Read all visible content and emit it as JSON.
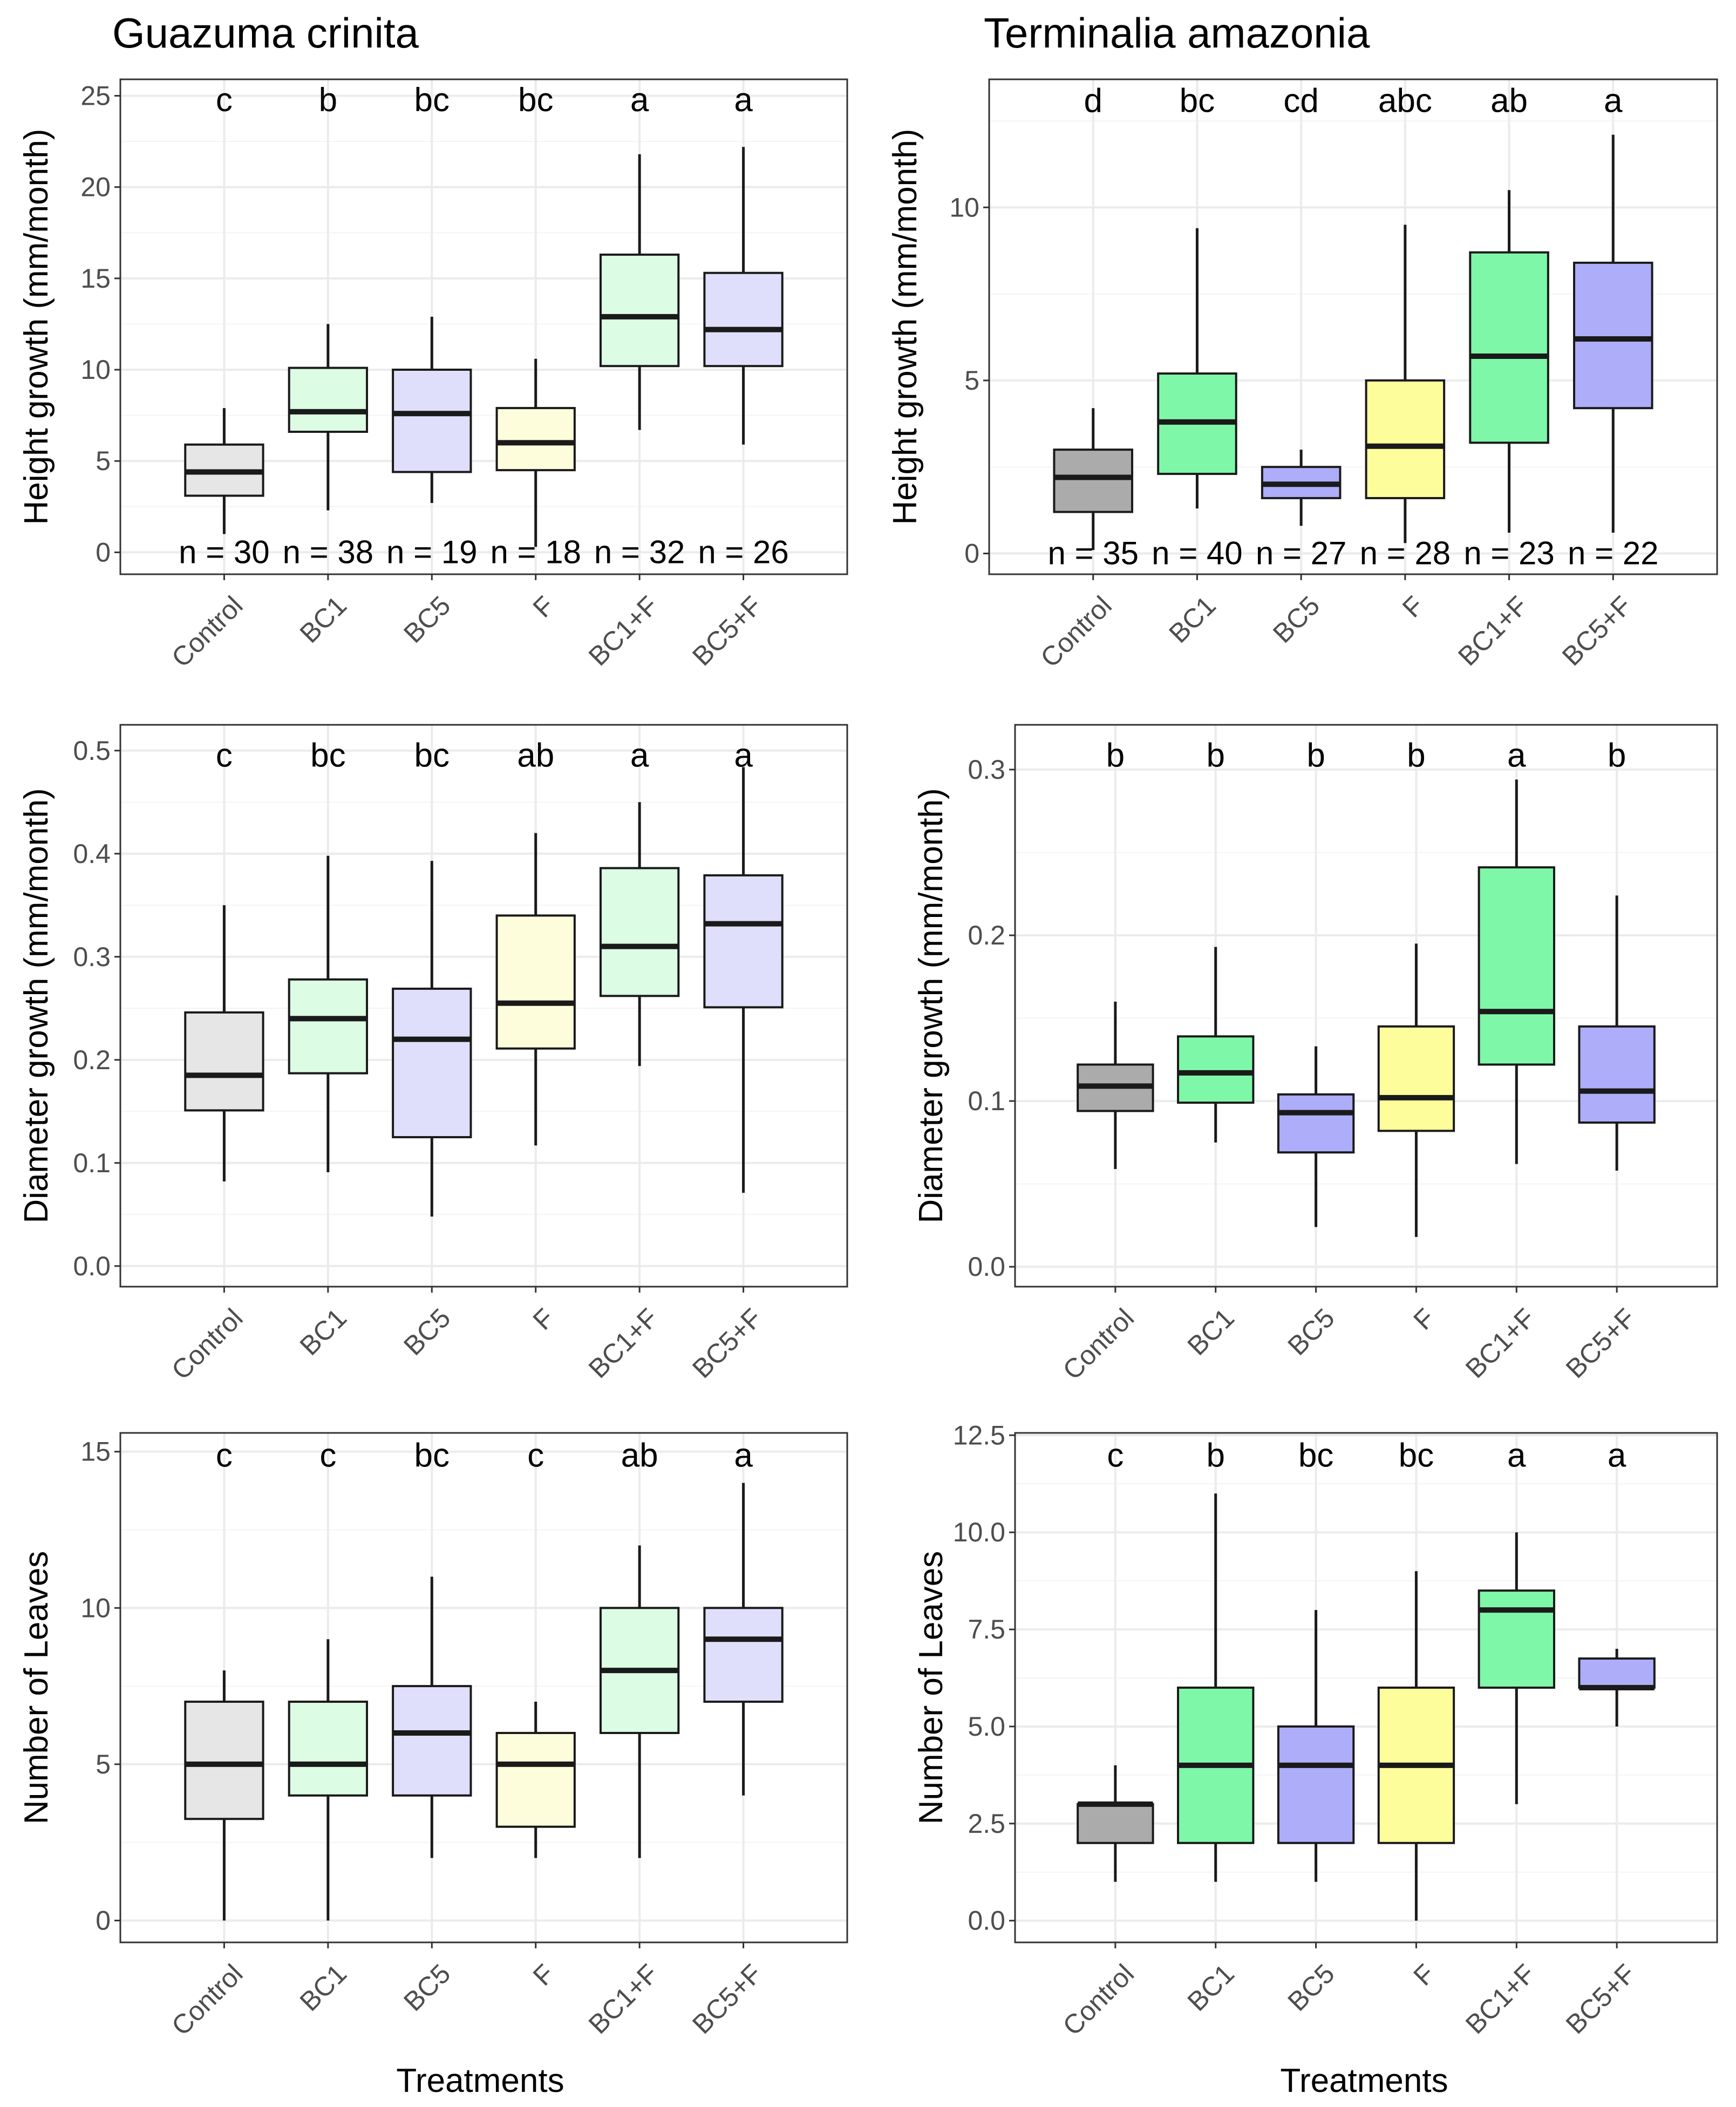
{
  "species_titles": [
    "Guazuma crinita",
    "Terminalia amazonia"
  ],
  "x_axis_title": "Treatments",
  "colors": {
    "light": [
      "#e6e6e6",
      "#dcfce3",
      "#dfdffc",
      "#fdfddb",
      "#dcfce3",
      "#dfdffc"
    ],
    "saturated": [
      "#ababab",
      "#7ff7a8",
      "#adadfa",
      "#fdfd9c",
      "#7ff7a8",
      "#adadfa"
    ]
  },
  "chart_data": [
    {
      "type": "boxplot",
      "species": "Guazuma crinita",
      "ylabel": "Height growth (mm/month)",
      "ylim": [
        -1.2,
        25.9
      ],
      "yticks": [
        0,
        5,
        10,
        15,
        20,
        25
      ],
      "ytick_labels": [
        "0",
        "5",
        "10",
        "15",
        "20",
        "25"
      ],
      "minor_ticks": [
        2.5,
        7.5,
        12.5,
        17.5,
        22.5
      ],
      "categories": [
        "Control",
        "BC1",
        "BC5",
        "F",
        "BC1+F",
        "BC5+F"
      ],
      "palette": "light",
      "boxes": [
        {
          "whisker_low": 1.0,
          "q1": 3.1,
          "median": 4.4,
          "q3": 5.9,
          "whisker_high": 7.9
        },
        {
          "whisker_low": 2.3,
          "q1": 6.6,
          "median": 7.7,
          "q3": 10.1,
          "whisker_high": 12.5
        },
        {
          "whisker_low": 2.7,
          "q1": 4.4,
          "median": 7.6,
          "q3": 10.0,
          "whisker_high": 12.9
        },
        {
          "whisker_low": 0.3,
          "q1": 4.5,
          "median": 6.0,
          "q3": 7.9,
          "whisker_high": 10.6
        },
        {
          "whisker_low": 6.7,
          "q1": 10.2,
          "median": 12.9,
          "q3": 16.3,
          "whisker_high": 21.8
        },
        {
          "whisker_low": 5.9,
          "q1": 10.2,
          "median": 12.2,
          "q3": 15.3,
          "whisker_high": 22.2
        }
      ],
      "letters": [
        "c",
        "b",
        "bc",
        "bc",
        "a",
        "a"
      ],
      "n_labels": [
        "n = 30",
        "n = 38",
        "n = 19",
        "n = 18",
        "n = 32",
        "n = 26"
      ],
      "letter_y": 24.8,
      "n_y": 0.0
    },
    {
      "type": "boxplot",
      "species": "Terminalia amazonia",
      "ylabel": "Height growth (mm/month)",
      "ylim": [
        -0.6,
        13.7
      ],
      "yticks": [
        0,
        5,
        10
      ],
      "ytick_labels": [
        "0",
        "5",
        "10"
      ],
      "minor_ticks": [
        2.5,
        7.5,
        12.5
      ],
      "categories": [
        "Control",
        "BC1",
        "BC5",
        "F",
        "BC1+F",
        "BC5+F"
      ],
      "palette": "saturated",
      "boxes": [
        {
          "whisker_low": 0.1,
          "q1": 1.2,
          "median": 2.2,
          "q3": 3.0,
          "whisker_high": 4.2
        },
        {
          "whisker_low": 1.3,
          "q1": 2.3,
          "median": 3.8,
          "q3": 5.2,
          "whisker_high": 9.4
        },
        {
          "whisker_low": 0.8,
          "q1": 1.6,
          "median": 2.0,
          "q3": 2.5,
          "whisker_high": 3.0
        },
        {
          "whisker_low": 0.3,
          "q1": 1.6,
          "median": 3.1,
          "q3": 5.0,
          "whisker_high": 9.5
        },
        {
          "whisker_low": 0.6,
          "q1": 3.2,
          "median": 5.7,
          "q3": 8.7,
          "whisker_high": 10.5
        },
        {
          "whisker_low": 0.6,
          "q1": 4.2,
          "median": 6.2,
          "q3": 8.4,
          "whisker_high": 12.1
        }
      ],
      "letters": [
        "d",
        "bc",
        "cd",
        "abc",
        "ab",
        "a"
      ],
      "n_labels": [
        "n = 35",
        "n = 40",
        "n = 27",
        "n = 28",
        "n = 23",
        "n = 22"
      ],
      "letter_y": 13.1,
      "n_y": 0.0
    },
    {
      "type": "boxplot",
      "species": "Guazuma crinita",
      "ylabel": "Diameter growth (mm/month)",
      "ylim": [
        -0.02,
        0.525
      ],
      "yticks": [
        0.0,
        0.1,
        0.2,
        0.3,
        0.4,
        0.5
      ],
      "ytick_labels": [
        "0.0",
        "0.1",
        "0.2",
        "0.3",
        "0.4",
        "0.5"
      ],
      "minor_ticks": [
        0.05,
        0.15,
        0.25,
        0.35,
        0.45
      ],
      "categories": [
        "Control",
        "BC1",
        "BC5",
        "F",
        "BC1+F",
        "BC5+F"
      ],
      "palette": "light",
      "boxes": [
        {
          "whisker_low": 0.082,
          "q1": 0.151,
          "median": 0.185,
          "q3": 0.246,
          "whisker_high": 0.35
        },
        {
          "whisker_low": 0.091,
          "q1": 0.187,
          "median": 0.24,
          "q3": 0.278,
          "whisker_high": 0.398
        },
        {
          "whisker_low": 0.048,
          "q1": 0.125,
          "median": 0.22,
          "q3": 0.269,
          "whisker_high": 0.393
        },
        {
          "whisker_low": 0.117,
          "q1": 0.211,
          "median": 0.255,
          "q3": 0.34,
          "whisker_high": 0.42
        },
        {
          "whisker_low": 0.194,
          "q1": 0.262,
          "median": 0.31,
          "q3": 0.386,
          "whisker_high": 0.45
        },
        {
          "whisker_low": 0.071,
          "q1": 0.251,
          "median": 0.332,
          "q3": 0.379,
          "whisker_high": 0.484
        }
      ],
      "letters": [
        "c",
        "bc",
        "bc",
        "ab",
        "a",
        "a"
      ],
      "letter_y": 0.496
    },
    {
      "type": "boxplot",
      "species": "Terminalia amazonia",
      "ylabel": "Diameter growth (mm/month)",
      "ylim": [
        -0.012,
        0.327
      ],
      "yticks": [
        0.0,
        0.1,
        0.2,
        0.3
      ],
      "ytick_labels": [
        "0.0",
        "0.1",
        "0.2",
        "0.3"
      ],
      "minor_ticks": [
        0.05,
        0.15,
        0.25
      ],
      "categories": [
        "Control",
        "BC1",
        "BC5",
        "F",
        "BC1+F",
        "BC5+F"
      ],
      "palette": "saturated",
      "boxes": [
        {
          "whisker_low": 0.059,
          "q1": 0.094,
          "median": 0.109,
          "q3": 0.122,
          "whisker_high": 0.16
        },
        {
          "whisker_low": 0.075,
          "q1": 0.099,
          "median": 0.117,
          "q3": 0.139,
          "whisker_high": 0.193
        },
        {
          "whisker_low": 0.024,
          "q1": 0.069,
          "median": 0.093,
          "q3": 0.104,
          "whisker_high": 0.133
        },
        {
          "whisker_low": 0.018,
          "q1": 0.082,
          "median": 0.102,
          "q3": 0.145,
          "whisker_high": 0.195
        },
        {
          "whisker_low": 0.062,
          "q1": 0.122,
          "median": 0.154,
          "q3": 0.241,
          "whisker_high": 0.294
        },
        {
          "whisker_low": 0.058,
          "q1": 0.087,
          "median": 0.106,
          "q3": 0.145,
          "whisker_high": 0.224
        }
      ],
      "letters": [
        "b",
        "b",
        "b",
        "b",
        "a",
        "b"
      ],
      "letter_y": 0.309
    },
    {
      "type": "boxplot",
      "species": "Guazuma crinita",
      "ylabel": "Number of Leaves",
      "ylim": [
        -0.7,
        15.6
      ],
      "yticks": [
        0,
        5,
        10,
        15
      ],
      "ytick_labels": [
        "0",
        "5",
        "10",
        "15"
      ],
      "minor_ticks": [
        2.5,
        7.5,
        12.5
      ],
      "categories": [
        "Control",
        "BC1",
        "BC5",
        "F",
        "BC1+F",
        "BC5+F"
      ],
      "palette": "light",
      "boxes": [
        {
          "whisker_low": 0,
          "q1": 3.25,
          "median": 5,
          "q3": 7,
          "whisker_high": 8
        },
        {
          "whisker_low": 0,
          "q1": 4,
          "median": 5,
          "q3": 7,
          "whisker_high": 9
        },
        {
          "whisker_low": 2,
          "q1": 4,
          "median": 6,
          "q3": 7.5,
          "whisker_high": 11
        },
        {
          "whisker_low": 2,
          "q1": 3,
          "median": 5,
          "q3": 6,
          "whisker_high": 7
        },
        {
          "whisker_low": 2,
          "q1": 6,
          "median": 8,
          "q3": 10,
          "whisker_high": 12
        },
        {
          "whisker_low": 4,
          "q1": 7,
          "median": 9,
          "q3": 10,
          "whisker_high": 14
        }
      ],
      "letters": [
        "c",
        "c",
        "bc",
        "c",
        "ab",
        "a"
      ],
      "letter_y": 14.9
    },
    {
      "type": "boxplot",
      "species": "Terminalia amazonia",
      "ylabel": "Number of Leaves",
      "ylim": [
        -0.56,
        12.56
      ],
      "yticks": [
        0.0,
        2.5,
        5.0,
        7.5,
        10.0,
        12.5
      ],
      "ytick_labels": [
        "0.0",
        "2.5",
        "5.0",
        "7.5",
        "10.0",
        "12.5"
      ],
      "minor_ticks": [
        1.25,
        3.75,
        6.25,
        8.75,
        11.25
      ],
      "categories": [
        "Control",
        "BC1",
        "BC5",
        "F",
        "BC1+F",
        "BC5+F"
      ],
      "palette": "saturated",
      "boxes": [
        {
          "whisker_low": 1,
          "q1": 2,
          "median": 3,
          "q3": 3,
          "whisker_high": 4
        },
        {
          "whisker_low": 1,
          "q1": 2,
          "median": 4,
          "q3": 6,
          "whisker_high": 11
        },
        {
          "whisker_low": 1,
          "q1": 2,
          "median": 4,
          "q3": 5,
          "whisker_high": 8
        },
        {
          "whisker_low": 0,
          "q1": 2,
          "median": 4,
          "q3": 6,
          "whisker_high": 9
        },
        {
          "whisker_low": 3,
          "q1": 6,
          "median": 8,
          "q3": 8.5,
          "whisker_high": 10
        },
        {
          "whisker_low": 5,
          "q1": 6,
          "median": 6,
          "q3": 6.75,
          "whisker_high": 7
        }
      ],
      "letters": [
        "c",
        "b",
        "bc",
        "bc",
        "a",
        "a"
      ],
      "letter_y": 12.0
    }
  ]
}
